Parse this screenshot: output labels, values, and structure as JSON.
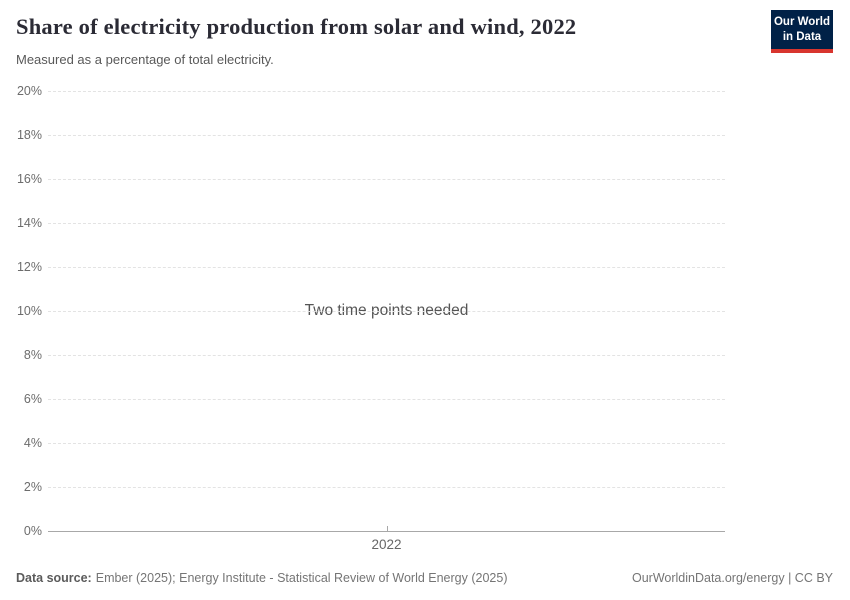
{
  "header": {
    "title": "Share of electricity production from solar and wind, 2022",
    "subtitle": "Measured as a percentage of total electricity."
  },
  "logo": {
    "line1": "Our World",
    "line2": "in Data",
    "background_color": "#002147",
    "underline_color": "#d8352e"
  },
  "chart_data": {
    "type": "line",
    "title": "Share of electricity production from solar and wind, 2022",
    "subtitle": "Measured as a percentage of total electricity.",
    "xlabel": "",
    "ylabel": "",
    "ylim": [
      0,
      20
    ],
    "grid": "horizontal-dashed",
    "legend": "none",
    "yticks": [
      {
        "value": 0,
        "label": "0%"
      },
      {
        "value": 2,
        "label": "2%"
      },
      {
        "value": 4,
        "label": "4%"
      },
      {
        "value": 6,
        "label": "6%"
      },
      {
        "value": 8,
        "label": "8%"
      },
      {
        "value": 10,
        "label": "10%"
      },
      {
        "value": 12,
        "label": "12%"
      },
      {
        "value": 14,
        "label": "14%"
      },
      {
        "value": 16,
        "label": "16%"
      },
      {
        "value": 18,
        "label": "18%"
      },
      {
        "value": 20,
        "label": "20%"
      }
    ],
    "xticks": [
      "2022"
    ],
    "series": [],
    "empty_message": "Two time points needed"
  },
  "footer": {
    "datasource_label": "Data source:",
    "datasource_text": "Ember (2025); Energy Institute - Statistical Review of World Energy (2025)",
    "attribution": "OurWorldinData.org/energy | CC BY"
  },
  "colors": {
    "title_text": "#2b2b35",
    "subtitle_text": "#595959",
    "tick_text": "#6c6c6c",
    "gridline": "#e3e3e3",
    "axis_line": "#a8a8a8",
    "footer_text": "#757575"
  }
}
